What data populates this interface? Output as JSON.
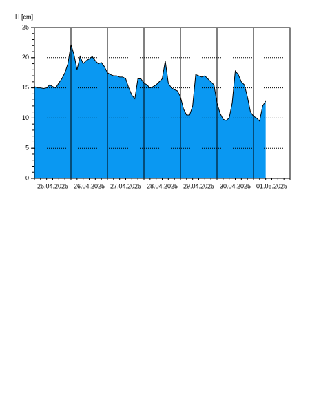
{
  "chart_data": {
    "type": "area",
    "y_label": "H [cm]",
    "categories": [
      null,
      null,
      null,
      null,
      null,
      null,
      "25.04.2025",
      null,
      null,
      null,
      null,
      null,
      null,
      null,
      null,
      null,
      null,
      null,
      "26.04.2025",
      null,
      null,
      null,
      null,
      null,
      null,
      null,
      null,
      null,
      null,
      null,
      "27.04.2025",
      null,
      null,
      null,
      null,
      null,
      null,
      null,
      null,
      null,
      null,
      null,
      "28.04.2025",
      null,
      null,
      null,
      null,
      null,
      null,
      null,
      null,
      null,
      null,
      null,
      "29.04.2025",
      null,
      null,
      null,
      null,
      null,
      null,
      null,
      null,
      null,
      null,
      null,
      "30.04.2025",
      null,
      null,
      null,
      null,
      null,
      null,
      null,
      null,
      null,
      null,
      null,
      "01.05.2025",
      null,
      null,
      null,
      null,
      null
    ],
    "values": [
      15.2,
      15.0,
      15.0,
      14.9,
      15.0,
      15.5,
      15.2,
      15.0,
      15.8,
      16.5,
      17.5,
      19.0,
      22.2,
      20.5,
      18.0,
      20.2,
      19.0,
      19.5,
      19.8,
      20.2,
      19.5,
      19.0,
      19.2,
      18.5,
      17.5,
      17.2,
      17.0,
      17.0,
      16.8,
      16.8,
      16.5,
      15.0,
      13.8,
      13.2,
      16.5,
      16.5,
      15.8,
      15.5,
      15.0,
      15.2,
      15.5,
      16.0,
      16.5,
      19.5,
      15.8,
      15.0,
      14.7,
      14.5,
      13.5,
      11.5,
      10.5,
      10.5,
      12.0,
      17.2,
      17.0,
      16.8,
      17.0,
      16.5,
      16.0,
      15.5,
      12.5,
      10.8,
      9.8,
      9.6,
      10.0,
      12.5,
      17.8,
      17.2,
      16.0,
      15.5,
      13.5,
      11.0,
      10.3,
      10.0,
      9.5,
      12.0,
      12.8,
      null,
      null,
      null,
      null,
      null,
      null,
      null
    ],
    "color": "#0a98f2",
    "ylim": [
      0,
      25
    ],
    "yticks": [
      0,
      5,
      10,
      15,
      20,
      25
    ],
    "grid": true
  }
}
